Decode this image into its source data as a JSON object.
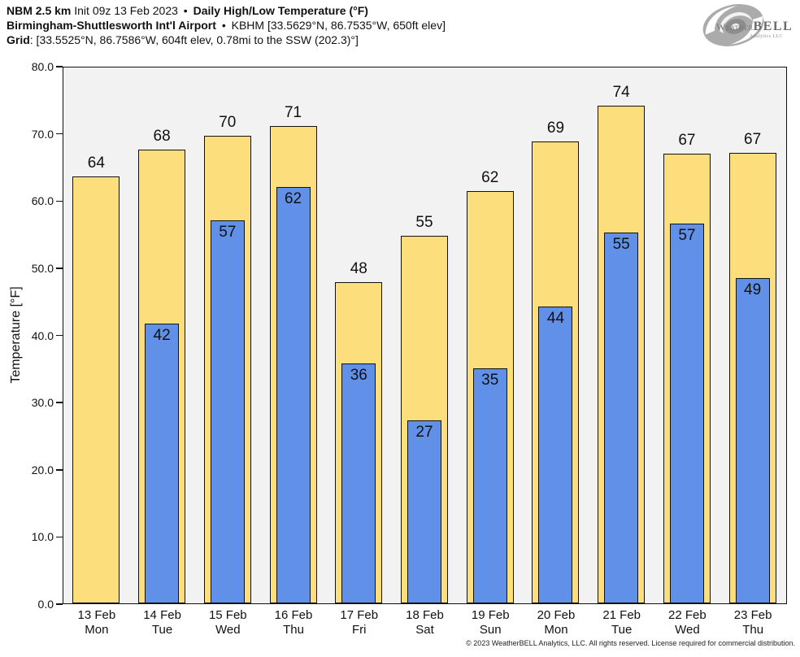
{
  "header": {
    "line1": {
      "model": "NBM 2.5 km",
      "init": "Init 09z 13 Feb 2023",
      "sep": "•",
      "product": "Daily High/Low Temperature (°F)"
    },
    "line2": {
      "station": "Birmingham-Shuttlesworth Int'l Airport",
      "sep": "•",
      "details": "KBHM [33.5629°N, 86.7535°W, 650ft elev]"
    },
    "line3": {
      "label": "Grid",
      "details": ": [33.5525°N, 86.7586°W, 604ft elev, 0.78mi to the SSW (202.3)°]"
    }
  },
  "logo": {
    "brand_prefix": "Weather",
    "brand_suffix": "BELL",
    "subtitle": "Analytics LLC"
  },
  "chart_data": {
    "type": "bar",
    "title": "Daily High/Low Temperature (°F)",
    "ylabel": "Temperature [°F]",
    "xlabel": "",
    "ylim": [
      0,
      80
    ],
    "grid": false,
    "legend": "none",
    "plot_background": "#f2f2f2",
    "bar_border_color": "#111111",
    "yticks": [
      {
        "value": 0,
        "label": "0.0"
      },
      {
        "value": 10,
        "label": "10.0"
      },
      {
        "value": 20,
        "label": "20.0"
      },
      {
        "value": 30,
        "label": "30.0"
      },
      {
        "value": 40,
        "label": "40.0"
      },
      {
        "value": 50,
        "label": "50.0"
      },
      {
        "value": 60,
        "label": "60.0"
      },
      {
        "value": 70,
        "label": "70.0"
      },
      {
        "value": 80,
        "label": "80.0"
      }
    ],
    "categories": [
      {
        "date": "13 Feb",
        "day": "Mon"
      },
      {
        "date": "14 Feb",
        "day": "Tue"
      },
      {
        "date": "15 Feb",
        "day": "Wed"
      },
      {
        "date": "16 Feb",
        "day": "Thu"
      },
      {
        "date": "17 Feb",
        "day": "Fri"
      },
      {
        "date": "18 Feb",
        "day": "Sat"
      },
      {
        "date": "19 Feb",
        "day": "Sun"
      },
      {
        "date": "20 Feb",
        "day": "Mon"
      },
      {
        "date": "21 Feb",
        "day": "Tue"
      },
      {
        "date": "22 Feb",
        "day": "Wed"
      },
      {
        "date": "23 Feb",
        "day": "Thu"
      }
    ],
    "series": [
      {
        "name": "High",
        "color": "#fcdf7c",
        "values": [
          63.8,
          67.8,
          69.9,
          71.4,
          48.0,
          54.9,
          61.7,
          69.1,
          74.4,
          67.2,
          67.4
        ],
        "labels": [
          "64",
          "68",
          "70",
          "71",
          "48",
          "55",
          "62",
          "69",
          "74",
          "67",
          "67"
        ]
      },
      {
        "name": "Low",
        "color": "#6090e8",
        "values": [
          null,
          41.8,
          57.3,
          62.2,
          35.9,
          27.3,
          35.1,
          44.4,
          55.4,
          56.8,
          48.6
        ],
        "labels": [
          null,
          "42",
          "57",
          "62",
          "36",
          "27",
          "35",
          "44",
          "55",
          "57",
          "49"
        ]
      }
    ]
  },
  "footer": {
    "copyright": "© 2023 WeatherBELL Analytics, LLC. All rights reserved. License required for commercial distribution."
  }
}
